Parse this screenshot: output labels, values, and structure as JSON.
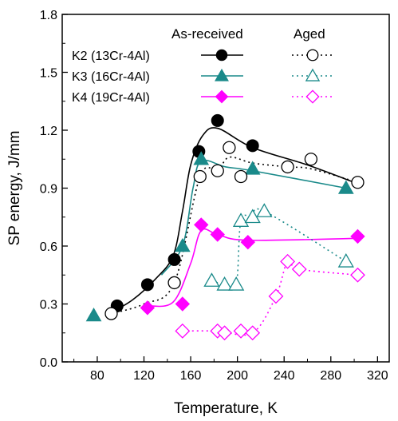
{
  "chart_data": {
    "type": "scatter",
    "xlabel": "Temperature, K",
    "ylabel": "SP energy, J/mm",
    "xlim": [
      50,
      330
    ],
    "ylim": [
      0.0,
      1.8
    ],
    "x_ticks": [
      80,
      120,
      160,
      200,
      240,
      280,
      320
    ],
    "y_ticks": [
      0.0,
      0.3,
      0.6,
      0.9,
      1.2,
      1.5,
      1.8
    ],
    "x_tick_labels": [
      "80",
      "120",
      "160",
      "200",
      "240",
      "280",
      "320"
    ],
    "y_tick_labels": [
      "0.0",
      "0.3",
      "0.6",
      "0.9",
      "1.2",
      "1.5",
      "1.8"
    ],
    "grid": false,
    "legend_position": "top-left",
    "legend_headers": [
      "As-received",
      "Aged"
    ],
    "series": [
      {
        "name": "K2 (13Cr-4Al)",
        "condition": "As-received",
        "marker": "circle",
        "filled": true,
        "line_style": "solid",
        "color": "#000000",
        "points": [
          [
            97,
            0.29
          ],
          [
            123,
            0.4
          ],
          [
            146,
            0.53
          ],
          [
            167,
            1.09
          ],
          [
            183,
            1.25
          ],
          [
            213,
            1.12
          ]
        ],
        "fit": [
          [
            90,
            0.25
          ],
          [
            110,
            0.32
          ],
          [
            130,
            0.43
          ],
          [
            145,
            0.55
          ],
          [
            153,
            0.78
          ],
          [
            160,
            1.02
          ],
          [
            170,
            1.17
          ],
          [
            183,
            1.21
          ],
          [
            213,
            1.11
          ],
          [
            260,
            1.02
          ],
          [
            300,
            0.93
          ]
        ]
      },
      {
        "name": "K3 (16Cr-4Al)",
        "condition": "As-received",
        "marker": "triangle",
        "filled": true,
        "line_style": "solid",
        "color": "#1a8a8a",
        "points": [
          [
            77,
            0.24
          ],
          [
            153,
            0.6
          ],
          [
            169,
            1.05
          ],
          [
            213,
            1.0
          ],
          [
            293,
            0.9
          ]
        ],
        "fit": [
          [
            135,
            0.45
          ],
          [
            153,
            0.6
          ],
          [
            162,
            0.9
          ],
          [
            169,
            1.04
          ],
          [
            190,
            1.01
          ],
          [
            213,
            0.99
          ],
          [
            293,
            0.9
          ]
        ]
      },
      {
        "name": "K4 (19Cr-4Al)",
        "condition": "As-received",
        "marker": "diamond",
        "filled": true,
        "line_style": "solid",
        "color": "#ff00ff",
        "points": [
          [
            123,
            0.28
          ],
          [
            153,
            0.3
          ],
          [
            169,
            0.71
          ],
          [
            183,
            0.66
          ],
          [
            209,
            0.62
          ],
          [
            303,
            0.65
          ]
        ],
        "fit": [
          [
            123,
            0.29
          ],
          [
            145,
            0.31
          ],
          [
            160,
            0.51
          ],
          [
            169,
            0.68
          ],
          [
            183,
            0.66
          ],
          [
            209,
            0.63
          ],
          [
            303,
            0.64
          ]
        ]
      },
      {
        "name": "K2 (13Cr-4Al)",
        "condition": "Aged",
        "marker": "circle",
        "filled": false,
        "line_style": "dotted",
        "color": "#000000",
        "points": [
          [
            92,
            0.25
          ],
          [
            146,
            0.41
          ],
          [
            168,
            0.96
          ],
          [
            183,
            0.99
          ],
          [
            193,
            1.11
          ],
          [
            203,
            0.96
          ],
          [
            243,
            1.01
          ],
          [
            263,
            1.05
          ],
          [
            303,
            0.93
          ]
        ],
        "fit": [
          [
            92,
            0.25
          ],
          [
            120,
            0.3
          ],
          [
            146,
            0.41
          ],
          [
            168,
            0.96
          ],
          [
            183,
            0.99
          ],
          [
            193,
            1.06
          ],
          [
            213,
            1.03
          ],
          [
            243,
            1.01
          ],
          [
            263,
            1.0
          ],
          [
            303,
            0.93
          ]
        ]
      },
      {
        "name": "K3 (16Cr-4Al)",
        "condition": "Aged",
        "marker": "triangle",
        "filled": false,
        "line_style": "dotted",
        "color": "#1a8a8a",
        "points": [
          [
            178,
            0.42
          ],
          [
            189,
            0.4
          ],
          [
            199,
            0.4
          ],
          [
            203,
            0.73
          ],
          [
            213,
            0.75
          ],
          [
            223,
            0.78
          ],
          [
            293,
            0.52
          ]
        ],
        "fit": [
          [
            178,
            0.42
          ],
          [
            189,
            0.4
          ],
          [
            199,
            0.4
          ],
          [
            203,
            0.73
          ],
          [
            213,
            0.75
          ],
          [
            223,
            0.78
          ],
          [
            293,
            0.52
          ]
        ]
      },
      {
        "name": "K4 (19Cr-4Al)",
        "condition": "Aged",
        "marker": "diamond",
        "filled": false,
        "line_style": "dotted",
        "color": "#ff00ff",
        "points": [
          [
            153,
            0.16
          ],
          [
            183,
            0.16
          ],
          [
            189,
            0.15
          ],
          [
            203,
            0.16
          ],
          [
            213,
            0.15
          ],
          [
            233,
            0.34
          ],
          [
            243,
            0.52
          ],
          [
            253,
            0.48
          ],
          [
            303,
            0.45
          ]
        ],
        "fit": [
          [
            153,
            0.16
          ],
          [
            183,
            0.16
          ],
          [
            213,
            0.15
          ],
          [
            233,
            0.34
          ],
          [
            243,
            0.52
          ],
          [
            253,
            0.48
          ],
          [
            303,
            0.45
          ]
        ]
      }
    ]
  }
}
